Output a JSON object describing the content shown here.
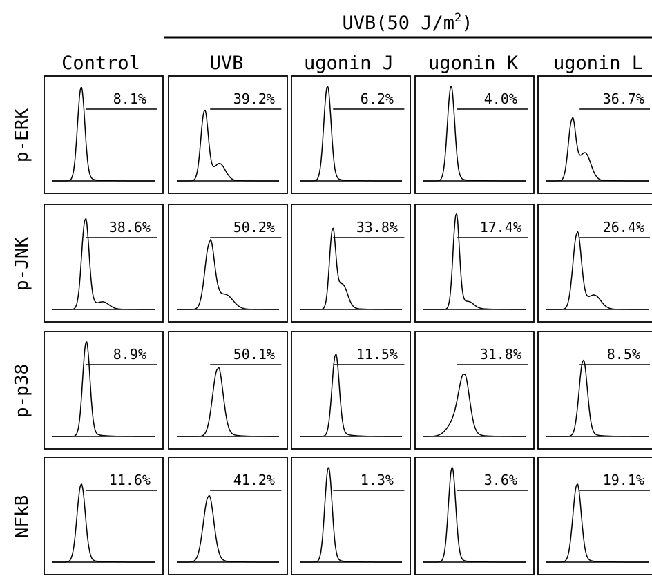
{
  "header": {
    "treatment_label": "UVB(50 J/m",
    "treatment_superscript": "2",
    "treatment_close": ")"
  },
  "columns": [
    "Control",
    "UVB",
    "ugonin J",
    "ugonin K",
    "ugonin L"
  ],
  "rows": [
    "p-ERK",
    "p-JNK",
    "p-p38",
    "NFkB"
  ],
  "cells": [
    [
      {
        "pct": "8.1%",
        "peak_pos": 0.28,
        "peak_h": 0.94,
        "width": 0.035,
        "shoulder_pos": null,
        "shoulder_h": 0,
        "tail": 0.05
      },
      {
        "pct": "39.2%",
        "peak_pos": 0.27,
        "peak_h": 0.7,
        "width": 0.035,
        "shoulder_pos": 0.42,
        "shoulder_h": 0.16,
        "tail": 0.08
      },
      {
        "pct": "6.2%",
        "peak_pos": 0.27,
        "peak_h": 0.95,
        "width": 0.035,
        "shoulder_pos": null,
        "shoulder_h": 0,
        "tail": 0.05
      },
      {
        "pct": "4.0%",
        "peak_pos": 0.27,
        "peak_h": 0.95,
        "width": 0.035,
        "shoulder_pos": null,
        "shoulder_h": 0,
        "tail": 0.05
      },
      {
        "pct": "36.7%",
        "peak_pos": 0.25,
        "peak_h": 0.6,
        "width": 0.035,
        "shoulder_pos": 0.38,
        "shoulder_h": 0.26,
        "tail": 0.1
      }
    ],
    [
      {
        "pct": "38.6%",
        "peak_pos": 0.32,
        "peak_h": 0.9,
        "width": 0.035,
        "shoulder_pos": 0.5,
        "shoulder_h": 0.06,
        "tail": 0.12
      },
      {
        "pct": "50.2%",
        "peak_pos": 0.32,
        "peak_h": 0.66,
        "width": 0.045,
        "shoulder_pos": 0.48,
        "shoulder_h": 0.13,
        "tail": 0.12
      },
      {
        "pct": "33.8%",
        "peak_pos": 0.32,
        "peak_h": 0.78,
        "width": 0.03,
        "shoulder_pos": 0.42,
        "shoulder_h": 0.22,
        "tail": 0.1
      },
      {
        "pct": "17.4%",
        "peak_pos": 0.32,
        "peak_h": 0.95,
        "width": 0.03,
        "shoulder_pos": 0.45,
        "shoulder_h": 0.05,
        "tail": 0.12
      },
      {
        "pct": "26.4%",
        "peak_pos": 0.3,
        "peak_h": 0.76,
        "width": 0.04,
        "shoulder_pos": 0.47,
        "shoulder_h": 0.13,
        "tail": 0.1
      }
    ],
    [
      {
        "pct": "8.9%",
        "peak_pos": 0.33,
        "peak_h": 0.95,
        "width": 0.035,
        "shoulder_pos": null,
        "shoulder_h": 0,
        "tail": 0.06
      },
      {
        "pct": "50.1%",
        "peak_pos": 0.4,
        "peak_h": 0.68,
        "width": 0.05,
        "shoulder_pos": null,
        "shoulder_h": 0,
        "tail": 0.08
      },
      {
        "pct": "11.5%",
        "peak_pos": 0.35,
        "peak_h": 0.82,
        "width": 0.035,
        "shoulder_pos": null,
        "shoulder_h": 0,
        "tail": 0.07
      },
      {
        "pct": "31.8%",
        "peak_pos": 0.4,
        "peak_h": 0.5,
        "width": 0.05,
        "shoulder_pos": 0.33,
        "shoulder_h": 0.18,
        "tail": 0.06
      },
      {
        "pct": "8.5%",
        "peak_pos": 0.36,
        "peak_h": 0.76,
        "width": 0.04,
        "shoulder_pos": null,
        "shoulder_h": 0,
        "tail": 0.06
      }
    ],
    [
      {
        "pct": "11.6%",
        "peak_pos": 0.28,
        "peak_h": 0.78,
        "width": 0.04,
        "shoulder_pos": null,
        "shoulder_h": 0,
        "tail": 0.05
      },
      {
        "pct": "41.2%",
        "peak_pos": 0.31,
        "peak_h": 0.66,
        "width": 0.05,
        "shoulder_pos": null,
        "shoulder_h": 0,
        "tail": 0.06
      },
      {
        "pct": "1.3%",
        "peak_pos": 0.28,
        "peak_h": 0.95,
        "width": 0.035,
        "shoulder_pos": null,
        "shoulder_h": 0,
        "tail": 0.05
      },
      {
        "pct": "3.6%",
        "peak_pos": 0.28,
        "peak_h": 0.95,
        "width": 0.035,
        "shoulder_pos": null,
        "shoulder_h": 0,
        "tail": 0.05
      },
      {
        "pct": "19.1%",
        "peak_pos": 0.3,
        "peak_h": 0.78,
        "width": 0.04,
        "shoulder_pos": null,
        "shoulder_h": 0,
        "tail": 0.06
      }
    ]
  ]
}
